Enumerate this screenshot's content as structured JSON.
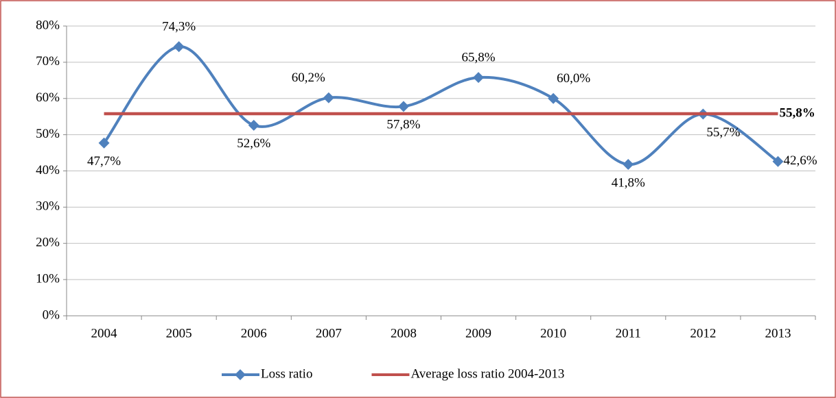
{
  "chart_data": {
    "type": "line",
    "categories": [
      "2004",
      "2005",
      "2006",
      "2007",
      "2008",
      "2009",
      "2010",
      "2011",
      "2012",
      "2013"
    ],
    "series": [
      {
        "name": "Loss ratio",
        "color": "#4f81bd",
        "smooth": true,
        "marker": "diamond",
        "values": [
          47.7,
          74.3,
          52.6,
          60.2,
          57.8,
          65.8,
          60.0,
          41.8,
          55.7,
          42.6
        ],
        "value_labels": [
          "47,7%",
          "74,3%",
          "52,6%",
          "60,2%",
          "57,8%",
          "65,8%",
          "60,0%",
          "41,8%",
          "55,7%",
          "42,6%"
        ]
      },
      {
        "name": "Average loss ratio 2004-2013",
        "color": "#c0504d",
        "smooth": false,
        "marker": null,
        "values": [
          55.8,
          55.8,
          55.8,
          55.8,
          55.8,
          55.8,
          55.8,
          55.8,
          55.8,
          55.8
        ],
        "value_labels": [
          null,
          null,
          null,
          null,
          null,
          null,
          null,
          null,
          null,
          "55,8%"
        ]
      }
    ],
    "ylim": [
      0,
      80
    ],
    "yticks": [
      {
        "value": 0,
        "label": "0%"
      },
      {
        "value": 10,
        "label": "10%"
      },
      {
        "value": 20,
        "label": "20%"
      },
      {
        "value": 30,
        "label": "30%"
      },
      {
        "value": 40,
        "label": "40%"
      },
      {
        "value": 50,
        "label": "50%"
      },
      {
        "value": 60,
        "label": "60%"
      },
      {
        "value": 70,
        "label": "70%"
      },
      {
        "value": 80,
        "label": "80%"
      }
    ],
    "grid": true,
    "legend": "bottom"
  }
}
